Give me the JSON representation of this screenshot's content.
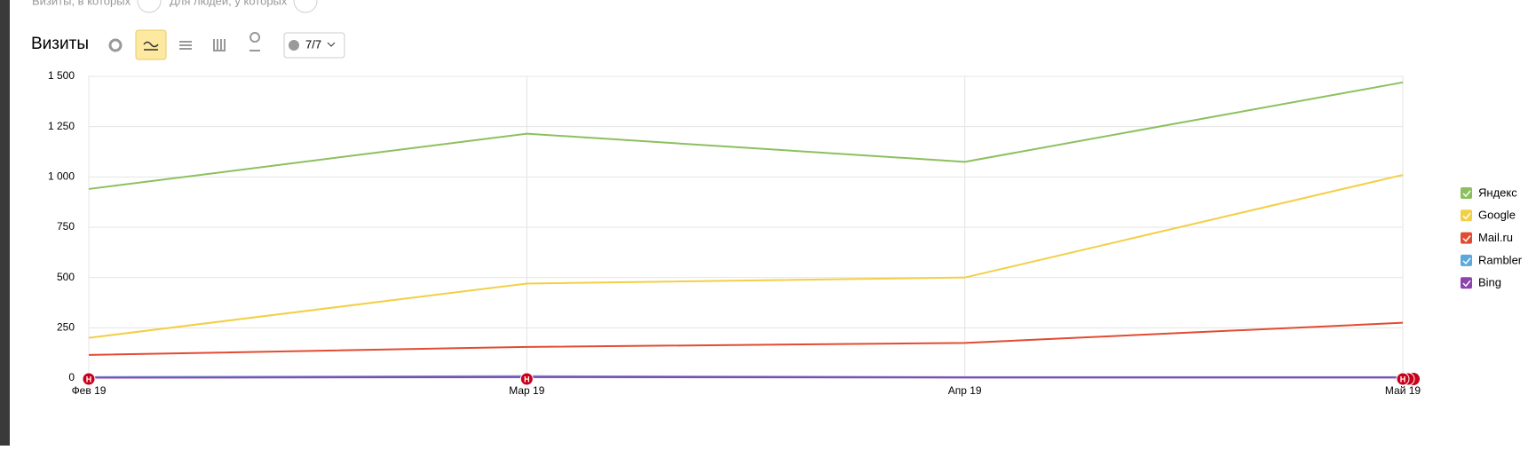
{
  "filters": [
    "Визиты, в которых",
    "Для людей, у которых"
  ],
  "comments_button": "7/7",
  "chart_data": {
    "type": "line",
    "title": "Визиты",
    "categories": [
      "Фев 19",
      "Мар 19",
      "Апр 19",
      "Май 19"
    ],
    "series": [
      {
        "name": "Яндекс",
        "color": "#8cc05e",
        "values": [
          940,
          1215,
          1075,
          1470
        ]
      },
      {
        "name": "Google",
        "color": "#f3cf47",
        "values": [
          200,
          470,
          500,
          1010
        ]
      },
      {
        "name": "Mail.ru",
        "color": "#e14c31",
        "values": [
          115,
          155,
          175,
          275
        ]
      },
      {
        "name": "Rambler",
        "color": "#5aa8dc",
        "values": [
          5,
          10,
          5,
          5
        ]
      },
      {
        "name": "Bing",
        "color": "#8d44ae",
        "values": [
          2,
          5,
          3,
          3
        ]
      }
    ],
    "ylim": [
      0,
      1500
    ],
    "yticks": [
      0,
      250,
      500,
      750,
      {
        "value": 1000,
        "label": "1 000"
      },
      {
        "value": 1250,
        "label": "1 250"
      },
      {
        "value": 1500,
        "label": "1 500"
      }
    ],
    "grid": true,
    "legend": "right",
    "annotations": [
      {
        "x": "Фев 19",
        "label": "Н"
      },
      {
        "x": "Мар 19",
        "label": "Н"
      },
      {
        "x": "Май 19",
        "label": "Н"
      }
    ]
  }
}
